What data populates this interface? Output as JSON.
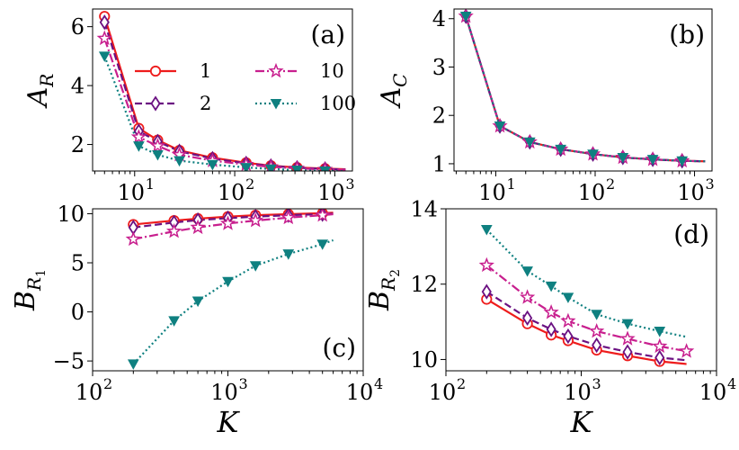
{
  "colors": {
    "s1": "#ee1c1c",
    "s2": "#6b1182",
    "s10": "#c81f8e",
    "s100": "#0f8080",
    "s_c": "#7a4b8a"
  },
  "legend": {
    "entries": [
      "1",
      "2",
      "10",
      "100"
    ]
  },
  "chart_data": [
    {
      "id": "a",
      "panel_label": "(a)",
      "type": "line",
      "ylabel": "A",
      "ylabel_sub": "R",
      "xlabel": "",
      "xscale": "log",
      "xlim": [
        3.8,
        1500
      ],
      "ylim": [
        1.1,
        6.6
      ],
      "xticks": [
        10,
        100,
        1000
      ],
      "xtick_exps": [
        "1",
        "2",
        "3"
      ],
      "yticks": [
        2,
        4,
        6
      ],
      "ytick_labels": [
        "2",
        "4",
        "6"
      ],
      "legend_location": "center",
      "series": [
        {
          "name": "1",
          "color": "#ee1c1c",
          "dash": "",
          "marker": "circle",
          "x": [
            5,
            11,
            17,
            28,
            60,
            130,
            230,
            420,
            800,
            1280
          ],
          "y": [
            6.35,
            2.55,
            2.15,
            1.8,
            1.55,
            1.38,
            1.28,
            1.22,
            1.18,
            1.16
          ],
          "marker_idx": [
            0,
            1,
            2,
            3,
            4,
            5,
            6,
            7,
            8
          ]
        },
        {
          "name": "2",
          "color": "#6b1182",
          "dash": "8,4",
          "marker": "diamond",
          "x": [
            5,
            11,
            17,
            28,
            60,
            130,
            230,
            420,
            800,
            1280
          ],
          "y": [
            6.15,
            2.45,
            2.1,
            1.77,
            1.52,
            1.36,
            1.27,
            1.21,
            1.17,
            1.15
          ],
          "marker_idx": [
            0,
            1,
            2,
            3,
            4,
            5,
            6,
            7,
            8
          ]
        },
        {
          "name": "10",
          "color": "#c81f8e",
          "dash": "10,3,2,3",
          "marker": "star",
          "x": [
            5,
            11,
            17,
            28,
            60,
            130,
            230,
            420,
            800,
            1280
          ],
          "y": [
            5.6,
            2.25,
            1.95,
            1.65,
            1.45,
            1.32,
            1.24,
            1.19,
            1.15,
            1.14
          ],
          "marker_idx": [
            0,
            1,
            2,
            3,
            4,
            5,
            6,
            7,
            8
          ]
        },
        {
          "name": "100",
          "color": "#0f8080",
          "dash": "2,3",
          "marker": "tri",
          "x": [
            5,
            11,
            17,
            28,
            60,
            130,
            230,
            420,
            800,
            1280
          ],
          "y": [
            5.0,
            1.95,
            1.65,
            1.45,
            1.32,
            1.22,
            1.17,
            1.13,
            1.1,
            1.09
          ],
          "marker_idx": [
            0,
            1,
            2,
            3,
            4,
            5,
            6,
            7,
            8
          ]
        }
      ]
    },
    {
      "id": "b",
      "panel_label": "(b)",
      "type": "line",
      "ylabel": "A",
      "ylabel_sub": "C",
      "xlabel": "",
      "xscale": "log",
      "xlim": [
        3.8,
        1500
      ],
      "ylim": [
        0.85,
        4.2
      ],
      "xticks": [
        10,
        100,
        1000
      ],
      "xtick_exps": [
        "1",
        "2",
        "3"
      ],
      "yticks": [
        1,
        2,
        3,
        4
      ],
      "ytick_labels": [
        "1",
        "2",
        "3",
        "4"
      ],
      "series": [
        {
          "name": "1",
          "color": "#ee1c1c",
          "dash": "",
          "marker": "none",
          "x": [
            5,
            11,
            22,
            45,
            95,
            190,
            380,
            750,
            1280
          ],
          "y": [
            4.05,
            1.78,
            1.45,
            1.3,
            1.2,
            1.13,
            1.09,
            1.06,
            1.05
          ],
          "marker_idx": []
        },
        {
          "name": "2",
          "color": "#6b1182",
          "dash": "8,4",
          "marker": "diamond",
          "x": [
            5,
            11,
            22,
            45,
            95,
            190,
            380,
            750,
            1280
          ],
          "y": [
            4.05,
            1.78,
            1.45,
            1.3,
            1.2,
            1.13,
            1.09,
            1.06,
            1.05
          ],
          "marker_idx": [
            0,
            1,
            2,
            3,
            4,
            5,
            6,
            7
          ]
        },
        {
          "name": "10",
          "color": "#c81f8e",
          "dash": "10,3,2,3",
          "marker": "star",
          "x": [
            5,
            11,
            22,
            45,
            95,
            190,
            380,
            750,
            1280
          ],
          "y": [
            4.05,
            1.78,
            1.45,
            1.3,
            1.2,
            1.13,
            1.09,
            1.06,
            1.05
          ],
          "marker_idx": [
            0,
            1,
            2,
            3,
            4,
            5,
            6,
            7
          ]
        },
        {
          "name": "100",
          "color": "#0f8080",
          "dash": "2,3",
          "marker": "tri",
          "x": [
            5,
            11,
            22,
            45,
            95,
            190,
            380,
            750,
            1280
          ],
          "y": [
            4.05,
            1.78,
            1.45,
            1.3,
            1.2,
            1.13,
            1.09,
            1.06,
            1.05
          ],
          "marker_idx": [
            0,
            1,
            2,
            3,
            4,
            5,
            6,
            7
          ]
        }
      ]
    },
    {
      "id": "c",
      "panel_label": "(c)",
      "type": "line",
      "ylabel": "B",
      "ylabel_sub": "R",
      "ylabel_subsub": "1",
      "xlabel": "K",
      "xscale": "log",
      "xlim": [
        100,
        10000
      ],
      "ylim": [
        -6,
        10.5
      ],
      "xticks": [
        100,
        1000,
        10000
      ],
      "xtick_exps": [
        "2",
        "3",
        "4"
      ],
      "yticks": [
        -5,
        0,
        5,
        10
      ],
      "ytick_labels": [
        "−5",
        "0",
        "5",
        "10"
      ],
      "series": [
        {
          "name": "1",
          "color": "#ee1c1c",
          "dash": "",
          "marker": "circle",
          "x": [
            200,
            400,
            600,
            1000,
            1600,
            2800,
            5000,
            6000
          ],
          "y": [
            8.9,
            9.3,
            9.5,
            9.7,
            9.85,
            9.95,
            10.05,
            10.1
          ],
          "marker_idx": [
            0,
            1,
            2,
            3,
            4,
            5,
            6
          ]
        },
        {
          "name": "2",
          "color": "#6b1182",
          "dash": "8,4",
          "marker": "diamond",
          "x": [
            200,
            400,
            600,
            1000,
            1600,
            2800,
            5000,
            6000
          ],
          "y": [
            8.6,
            9.1,
            9.35,
            9.55,
            9.7,
            9.85,
            9.95,
            10.0
          ],
          "marker_idx": [
            0,
            1,
            2,
            3,
            4,
            5,
            6
          ]
        },
        {
          "name": "10",
          "color": "#c81f8e",
          "dash": "10,3,2,3",
          "marker": "star",
          "x": [
            200,
            400,
            600,
            1000,
            1600,
            2800,
            5000,
            6000
          ],
          "y": [
            7.4,
            8.2,
            8.6,
            9.0,
            9.3,
            9.6,
            9.85,
            9.95
          ],
          "marker_idx": [
            0,
            1,
            2,
            3,
            4,
            5,
            6
          ]
        },
        {
          "name": "100",
          "color": "#0f8080",
          "dash": "2,3",
          "marker": "tri",
          "x": [
            200,
            400,
            600,
            1000,
            1600,
            2800,
            5000,
            6000
          ],
          "y": [
            -5.3,
            -0.9,
            1.1,
            3.1,
            4.7,
            5.9,
            6.9,
            7.3
          ],
          "marker_idx": [
            0,
            1,
            2,
            3,
            4,
            5,
            6
          ]
        }
      ]
    },
    {
      "id": "d",
      "panel_label": "(d)",
      "type": "line",
      "ylabel": "B",
      "ylabel_sub": "R",
      "ylabel_subsub": "2",
      "xlabel": "K",
      "xscale": "log",
      "xlim": [
        100,
        10000
      ],
      "ylim": [
        9.7,
        14
      ],
      "xticks": [
        100,
        1000,
        10000
      ],
      "xtick_exps": [
        "2",
        "3",
        "4"
      ],
      "yticks": [
        10,
        12,
        14
      ],
      "ytick_labels": [
        "10",
        "12",
        "14"
      ],
      "series": [
        {
          "name": "1",
          "color": "#ee1c1c",
          "dash": "",
          "marker": "circle",
          "x": [
            200,
            400,
            600,
            800,
            1300,
            2200,
            3800,
            6000
          ],
          "y": [
            11.6,
            10.95,
            10.65,
            10.5,
            10.25,
            10.1,
            9.95,
            9.88
          ],
          "marker_idx": [
            0,
            1,
            2,
            3,
            4,
            5,
            6
          ]
        },
        {
          "name": "2",
          "color": "#6b1182",
          "dash": "8,4",
          "marker": "diamond",
          "x": [
            200,
            400,
            600,
            800,
            1300,
            2200,
            3800,
            6000
          ],
          "y": [
            11.8,
            11.1,
            10.8,
            10.62,
            10.38,
            10.2,
            10.05,
            9.98
          ],
          "marker_idx": [
            0,
            1,
            2,
            3,
            4,
            5,
            6
          ]
        },
        {
          "name": "10",
          "color": "#c81f8e",
          "dash": "10,3,2,3",
          "marker": "star",
          "x": [
            200,
            400,
            600,
            800,
            1300,
            2200,
            3800,
            6000
          ],
          "y": [
            12.5,
            11.65,
            11.25,
            11.02,
            10.75,
            10.55,
            10.35,
            10.22
          ],
          "marker_idx": [
            0,
            1,
            2,
            3,
            4,
            5,
            6,
            7
          ]
        },
        {
          "name": "100",
          "color": "#0f8080",
          "dash": "2,3",
          "marker": "tri",
          "x": [
            200,
            400,
            600,
            800,
            1300,
            2200,
            3800,
            6000
          ],
          "y": [
            13.45,
            12.35,
            11.95,
            11.65,
            11.2,
            10.95,
            10.75,
            10.6
          ],
          "marker_idx": [
            0,
            1,
            2,
            3,
            4,
            5,
            6
          ]
        }
      ]
    }
  ]
}
